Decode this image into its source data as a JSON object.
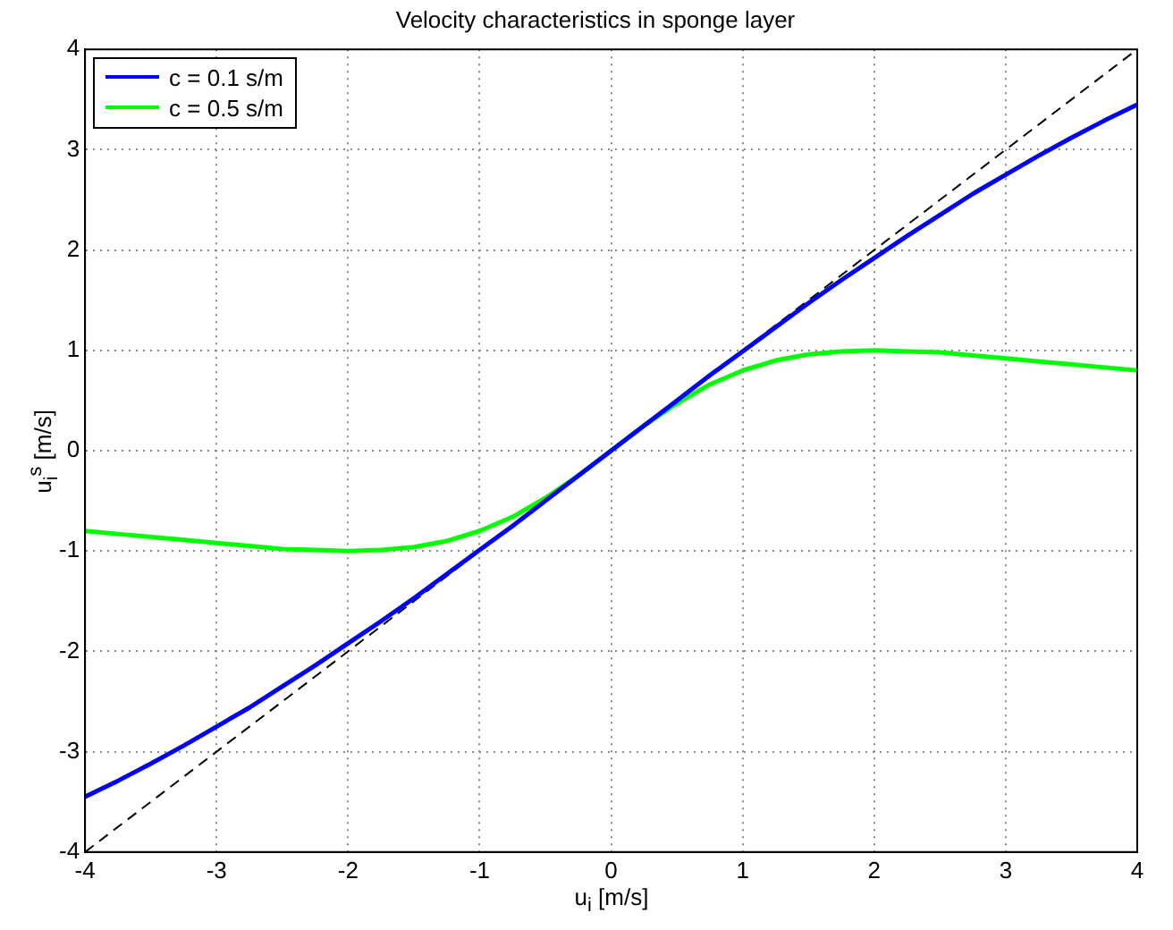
{
  "chart_data": {
    "type": "line",
    "title": "Velocity characteristics in sponge layer",
    "xlabel": "u$_{i}$ [m/s]",
    "ylabel": "u$_{i}$$^{s}$ [m/s]",
    "x": [
      -4,
      -3.75,
      -3.5,
      -3.25,
      -3,
      -2.75,
      -2.5,
      -2.25,
      -2,
      -1.75,
      -1.5,
      -1.25,
      -1,
      -0.75,
      -0.5,
      -0.25,
      0,
      0.25,
      0.5,
      0.75,
      1,
      1.25,
      1.5,
      1.75,
      2,
      2.25,
      2.5,
      2.75,
      3,
      3.25,
      3.5,
      3.75,
      4
    ],
    "series": [
      {
        "name": "c = 0.1 s/m",
        "color": "#0000ff",
        "values": [
          -3.45,
          -3.29,
          -3.12,
          -2.94,
          -2.75,
          -2.56,
          -2.35,
          -2.14,
          -1.92,
          -1.7,
          -1.47,
          -1.23,
          -0.99,
          -0.75,
          -0.5,
          -0.25,
          0,
          0.25,
          0.5,
          0.75,
          0.99,
          1.23,
          1.47,
          1.7,
          1.92,
          2.14,
          2.35,
          2.56,
          2.75,
          2.94,
          3.12,
          3.29,
          3.45
        ]
      },
      {
        "name": "c = 0.5 s/m",
        "color": "#00ff00",
        "values": [
          -0.8,
          -0.83,
          -0.86,
          -0.89,
          -0.92,
          -0.95,
          -0.98,
          -0.99,
          -1,
          -0.99,
          -0.96,
          -0.9,
          -0.8,
          -0.66,
          -0.47,
          -0.25,
          0,
          0.25,
          0.47,
          0.66,
          0.8,
          0.9,
          0.96,
          0.99,
          1,
          0.99,
          0.98,
          0.95,
          0.92,
          0.89,
          0.86,
          0.83,
          0.8
        ]
      },
      {
        "color": "#000000",
        "line_style": "dashed",
        "x": [
          -4,
          4
        ],
        "values": [
          -4,
          4
        ]
      }
    ],
    "xlim": [
      -4,
      4
    ],
    "ylim": [
      -4,
      4
    ],
    "xticks": [
      -4,
      -3,
      -2,
      -1,
      0,
      1,
      2,
      3,
      4
    ],
    "yticks": [
      -4,
      -3,
      -2,
      -1,
      0,
      1,
      2,
      3,
      4
    ],
    "grid": true,
    "legend": "top left",
    "line_style": "solid",
    "marker": "none"
  }
}
